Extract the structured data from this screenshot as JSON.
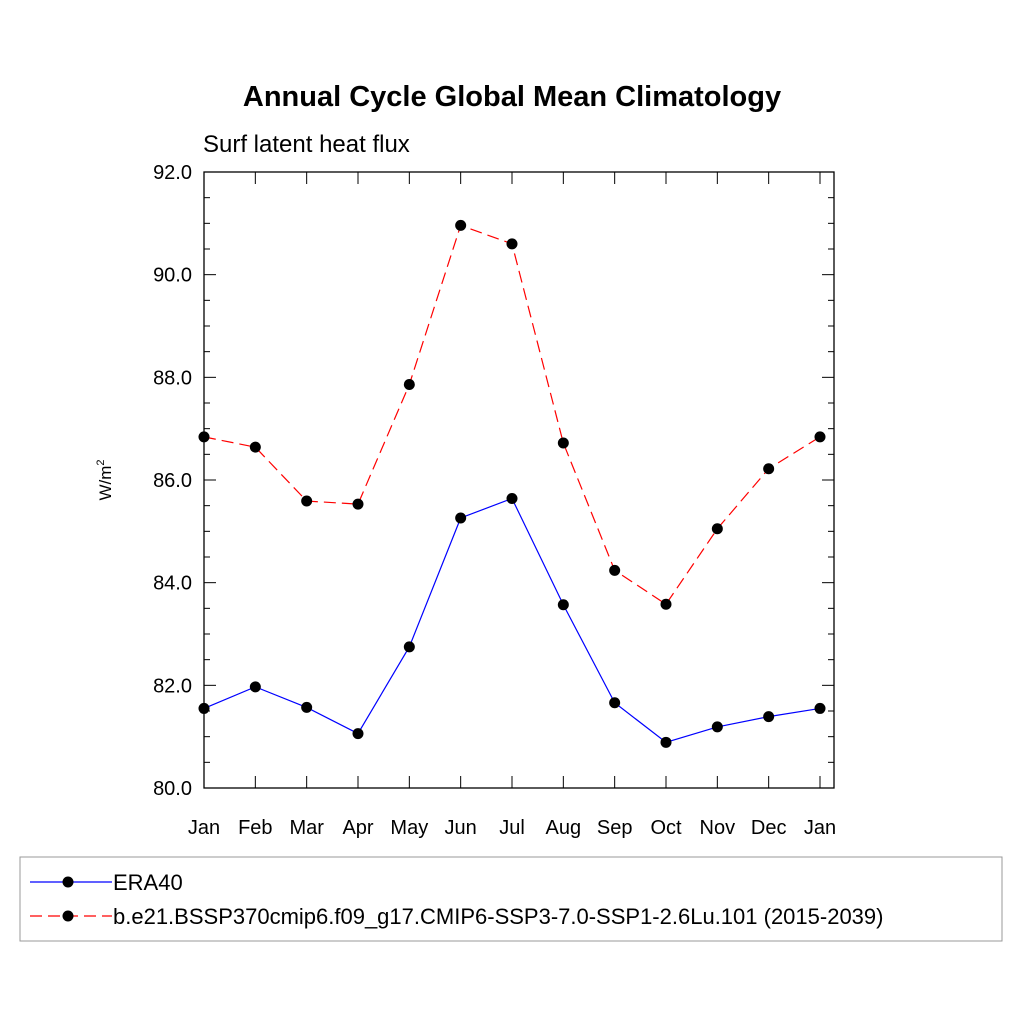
{
  "chart_data": {
    "type": "line",
    "title": "Annual Cycle Global Mean Climatology",
    "subtitle": "Surf latent heat flux",
    "ylabel_base": "W/m",
    "ylabel_sup": "2",
    "xlabel": "",
    "categories": [
      "Jan",
      "Feb",
      "Mar",
      "Apr",
      "May",
      "Jun",
      "Jul",
      "Aug",
      "Sep",
      "Oct",
      "Nov",
      "Dec",
      "Jan"
    ],
    "ylim": [
      80.0,
      92.0
    ],
    "yticks": [
      "80.0",
      "82.0",
      "84.0",
      "86.0",
      "88.0",
      "90.0",
      "92.0"
    ],
    "grid": false,
    "legend_position": "bottom",
    "series": [
      {
        "name": "ERA40",
        "color": "#0000ff",
        "dash": "solid",
        "marker": "circle",
        "values": [
          81.55,
          81.97,
          81.57,
          81.06,
          82.75,
          85.26,
          85.64,
          83.57,
          81.66,
          80.89,
          81.19,
          81.39,
          81.55
        ]
      },
      {
        "name": "b.e21.BSSP370cmip6.f09_g17.CMIP6-SSP3-7.0-SSP1-2.6Lu.101 (2015-2039)",
        "color": "#ff0000",
        "dash": "dashed",
        "marker": "circle",
        "values": [
          86.84,
          86.64,
          85.59,
          85.53,
          87.86,
          90.96,
          90.6,
          86.72,
          84.24,
          83.58,
          85.05,
          86.22,
          86.84
        ]
      }
    ]
  }
}
